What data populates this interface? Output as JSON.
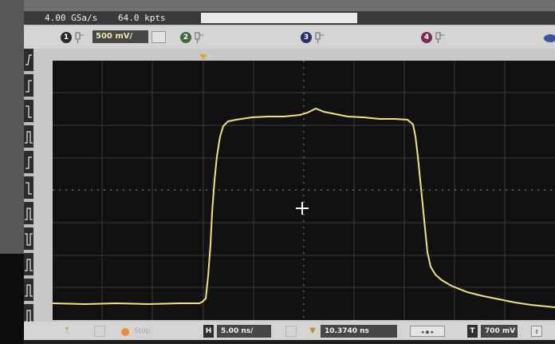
{
  "status": {
    "sample_rate": "4.00 GSa/s",
    "memory_depth": "64.0 kpts"
  },
  "channels": [
    {
      "number": "1",
      "scale": "500 mV/",
      "color": "#2a2a2a",
      "active": true
    },
    {
      "number": "2",
      "color": "#3e6b3e",
      "active": false
    },
    {
      "number": "3",
      "color": "#28306a",
      "active": false
    },
    {
      "number": "4",
      "color": "#7a2a55",
      "active": false
    }
  ],
  "acquisition": {
    "stop_label": "Stop",
    "run_indicator_color": "#f08a3a"
  },
  "horizontal": {
    "icon": "H",
    "time_per_div": "5.00 ns/",
    "delay_icon": "▼",
    "delay": "10.3740 ns"
  },
  "trigger": {
    "icon": "T",
    "level": "700 mV"
  },
  "waveform": {
    "trace_color": "#f2e27a",
    "description_points": "pulse"
  },
  "icons": {
    "eye": "eye-icon",
    "cursor": "crosshair-icon",
    "trigger_marker": "trigger-marker-icon"
  }
}
